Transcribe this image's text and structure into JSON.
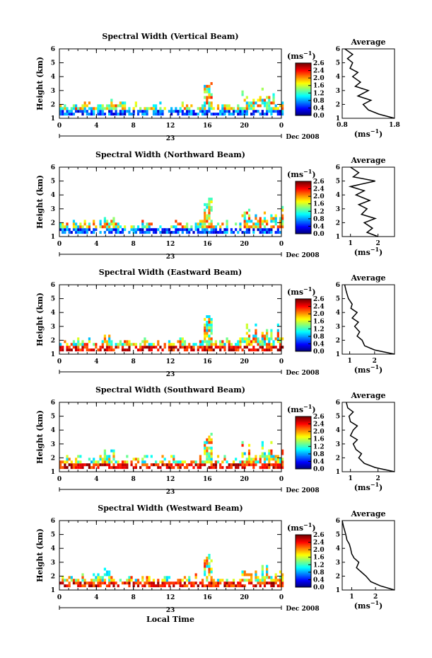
{
  "figure": {
    "xlabel": "Local Time",
    "date_label": "Dec 2008",
    "day_label": "23",
    "cbar_unit": "(ms",
    "cbar_unit_exp": "−1",
    "avg_title": "Average",
    "avg_unit": "(ms",
    "avg_unit_exp": "−1",
    "ylabel": "Height (km)"
  },
  "chart_data": [
    {
      "type": "heatmap",
      "title": "Spectral Width (Vertical Beam)",
      "xlim": [
        0,
        24
      ],
      "ylim": [
        1,
        6
      ],
      "x_ticks": [
        "0",
        "4",
        "8",
        "12",
        "16",
        "20",
        "0"
      ],
      "y_ticks": [
        "1",
        "2",
        "3",
        "4",
        "5",
        "6"
      ],
      "colorbar": {
        "range": [
          0.0,
          2.6
        ],
        "ticks": [
          "0.0",
          "0.4",
          "0.8",
          "1.2",
          "1.6",
          "2.0",
          "2.4",
          "2.6"
        ]
      },
      "avg": {
        "xticks": [
          "0.8",
          "1.8"
        ],
        "xlim": [
          0.8,
          1.8
        ],
        "heights": [
          1.0,
          1.3,
          1.6,
          2.0,
          2.3,
          2.6,
          3.0,
          3.3,
          3.6,
          4.0,
          4.3,
          4.6,
          5.0,
          5.3,
          5.6,
          6.0
        ],
        "values": [
          1.8,
          1.5,
          1.3,
          1.2,
          1.35,
          1.1,
          1.3,
          1.05,
          1.15,
          1.0,
          1.1,
          0.95,
          1.0,
          0.9,
          1.0,
          0.85
        ]
      }
    },
    {
      "type": "heatmap",
      "title": "Spectral Width (Northward Beam)",
      "xlim": [
        0,
        24
      ],
      "ylim": [
        1,
        6
      ],
      "x_ticks": [
        "0",
        "4",
        "8",
        "12",
        "16",
        "20",
        "0"
      ],
      "y_ticks": [
        "1",
        "2",
        "3",
        "4",
        "5",
        "6"
      ],
      "colorbar": {
        "range": [
          0.0,
          2.6
        ],
        "ticks": [
          "0.0",
          "0.4",
          "0.8",
          "1.2",
          "1.6",
          "2.0",
          "2.4",
          "2.6"
        ]
      },
      "avg": {
        "xticks": [
          "1",
          "2"
        ],
        "xlim": [
          0.7,
          2.6
        ],
        "heights": [
          1.0,
          1.3,
          1.6,
          2.0,
          2.3,
          2.6,
          3.0,
          3.3,
          3.6,
          4.0,
          4.3,
          4.6,
          5.0,
          5.3,
          5.6,
          6.0
        ],
        "values": [
          2.0,
          1.6,
          1.8,
          1.5,
          1.9,
          1.4,
          1.6,
          1.3,
          1.7,
          1.2,
          1.5,
          1.0,
          1.9,
          1.1,
          1.3,
          1.0
        ]
      }
    },
    {
      "type": "heatmap",
      "title": "Spectral Width (Eastward Beam)",
      "xlim": [
        0,
        24
      ],
      "ylim": [
        1,
        6
      ],
      "x_ticks": [
        "0",
        "4",
        "8",
        "12",
        "16",
        "20",
        "0"
      ],
      "y_ticks": [
        "1",
        "2",
        "3",
        "4",
        "5",
        "6"
      ],
      "colorbar": {
        "range": [
          0.0,
          2.6
        ],
        "ticks": [
          "0.0",
          "0.4",
          "0.8",
          "1.2",
          "1.6",
          "2.0",
          "2.4",
          "2.6"
        ]
      },
      "avg": {
        "xticks": [
          "1",
          "2"
        ],
        "xlim": [
          0.7,
          2.8
        ],
        "heights": [
          1.0,
          1.3,
          1.6,
          2.0,
          2.3,
          2.6,
          3.0,
          3.3,
          3.6,
          4.0,
          4.3,
          4.6,
          5.0,
          5.3,
          5.6,
          6.0
        ],
        "values": [
          2.8,
          2.0,
          1.6,
          1.5,
          1.3,
          1.4,
          1.2,
          1.35,
          1.1,
          1.3,
          1.05,
          1.1,
          0.95,
          0.9,
          0.85,
          0.8
        ]
      }
    },
    {
      "type": "heatmap",
      "title": "Spectral Width (Southward Beam)",
      "xlim": [
        0,
        24
      ],
      "ylim": [
        1,
        6
      ],
      "x_ticks": [
        "0",
        "4",
        "8",
        "12",
        "16",
        "20",
        "0"
      ],
      "y_ticks": [
        "1",
        "2",
        "3",
        "4",
        "5",
        "6"
      ],
      "colorbar": {
        "range": [
          0.0,
          2.6
        ],
        "ticks": [
          "0.0",
          "0.4",
          "0.8",
          "1.2",
          "1.6",
          "2.0",
          "2.4",
          "2.6"
        ]
      },
      "avg": {
        "xticks": [
          "1",
          "2"
        ],
        "xlim": [
          0.7,
          2.6
        ],
        "heights": [
          1.0,
          1.3,
          1.6,
          2.0,
          2.3,
          2.6,
          3.0,
          3.3,
          3.6,
          4.0,
          4.3,
          4.6,
          5.0,
          5.3,
          5.6,
          6.0
        ],
        "values": [
          2.6,
          1.9,
          1.5,
          1.3,
          1.4,
          1.2,
          1.1,
          1.25,
          1.0,
          1.1,
          1.25,
          1.0,
          0.95,
          1.1,
          0.9,
          0.85
        ]
      }
    },
    {
      "type": "heatmap",
      "title": "Spectral Width (Westward Beam)",
      "xlim": [
        0,
        24
      ],
      "ylim": [
        1,
        6
      ],
      "x_ticks": [
        "0",
        "4",
        "8",
        "12",
        "16",
        "20",
        "0"
      ],
      "y_ticks": [
        "1",
        "2",
        "3",
        "4",
        "5",
        "6"
      ],
      "colorbar": {
        "range": [
          0.0,
          2.6
        ],
        "ticks": [
          "0.0",
          "0.4",
          "0.8",
          "1.2",
          "1.6",
          "2.0",
          "2.4",
          "2.6"
        ]
      },
      "avg": {
        "xticks": [
          "1",
          "2"
        ],
        "xlim": [
          0.6,
          2.8
        ],
        "heights": [
          1.0,
          1.3,
          1.6,
          2.0,
          2.3,
          2.6,
          3.0,
          3.3,
          3.6,
          4.0,
          4.3,
          4.6,
          5.0,
          5.3,
          5.6,
          6.0
        ],
        "values": [
          2.8,
          2.2,
          1.8,
          1.6,
          1.4,
          1.2,
          1.3,
          1.1,
          1.0,
          0.95,
          0.9,
          0.8,
          0.75,
          0.7,
          0.65,
          0.6
        ]
      }
    }
  ]
}
